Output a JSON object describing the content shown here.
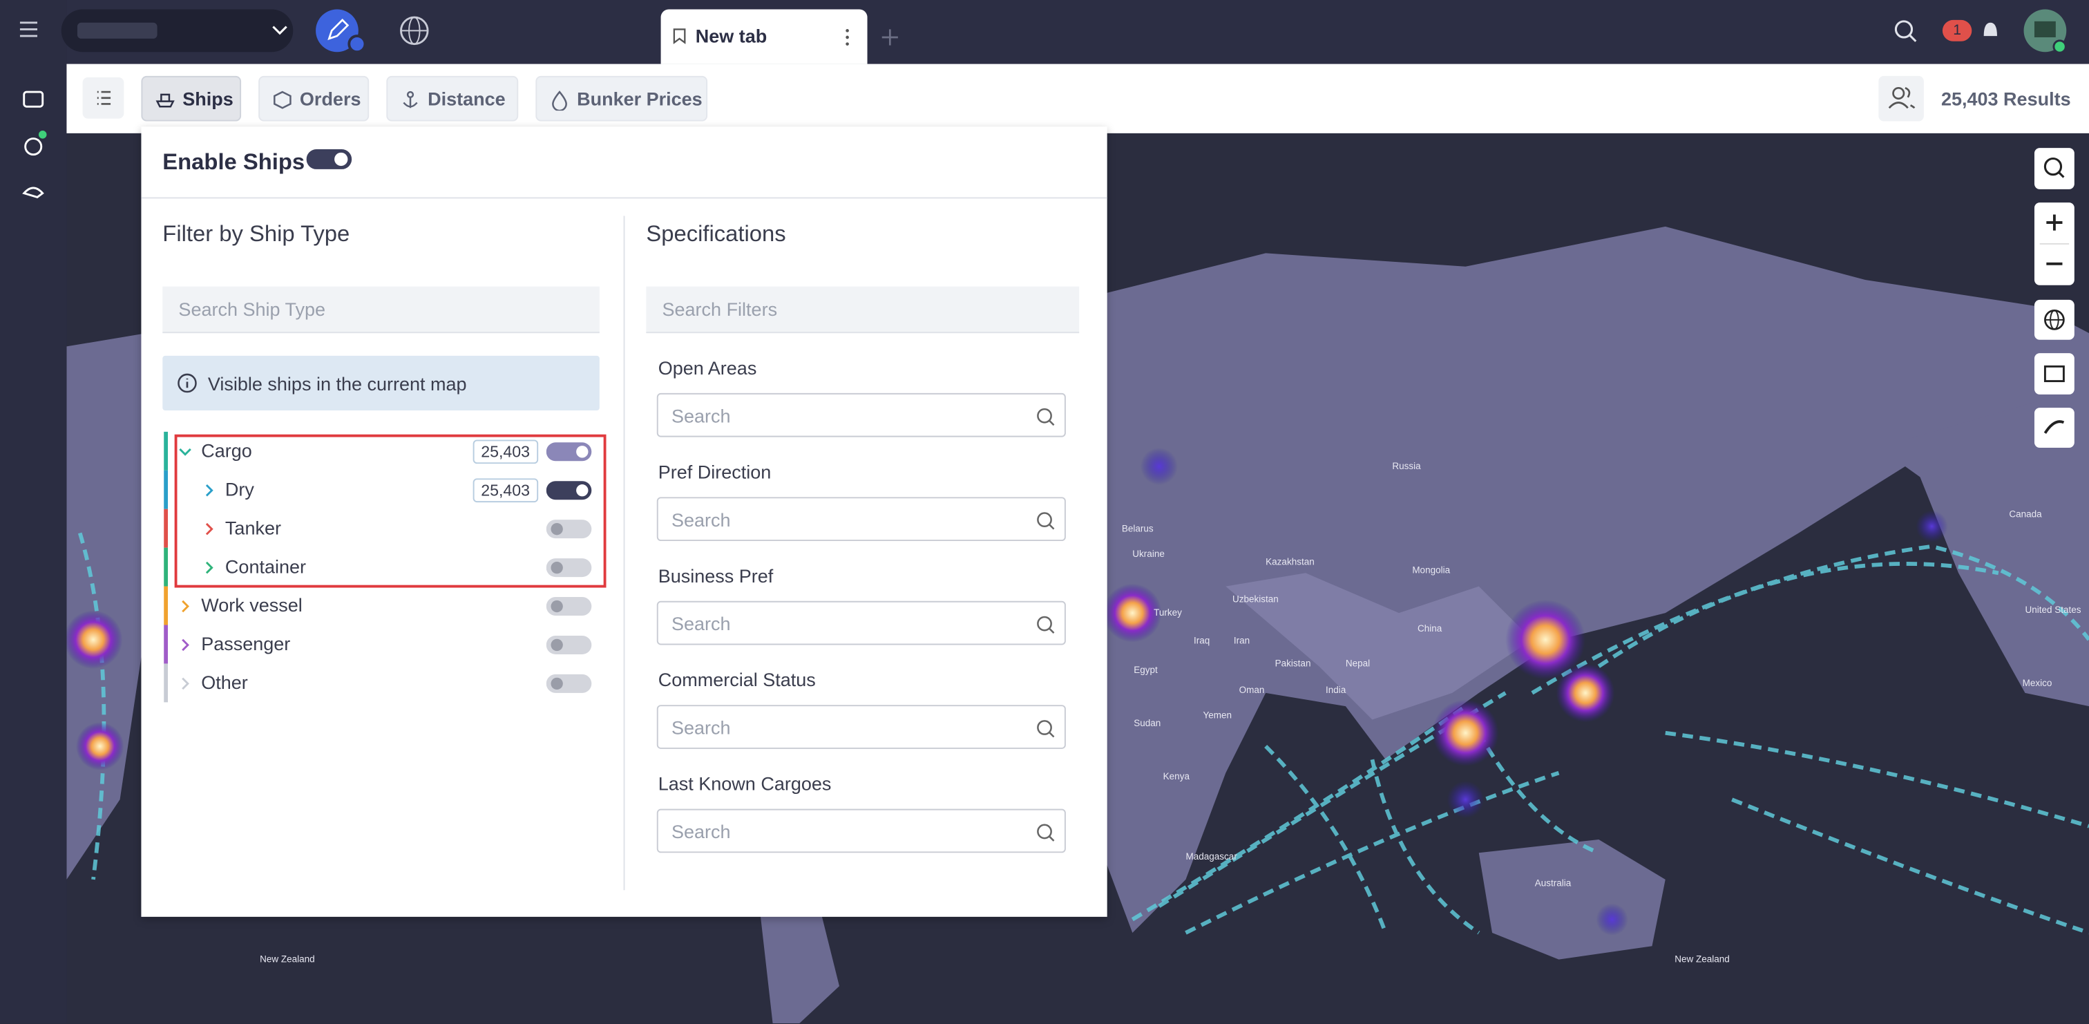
{
  "topbar": {
    "tab_title": "New tab",
    "notification_count": "1"
  },
  "toolbar": {
    "tabs": [
      "Ships",
      "Orders",
      "Distance",
      "Bunker Prices"
    ],
    "results": "25,403 Results"
  },
  "panel": {
    "enable_label": "Enable Ships",
    "filter_title": "Filter by Ship Type",
    "search_ship_type": "Search Ship Type",
    "info": "Visible ships in the current map",
    "ship_types": [
      {
        "label": "Cargo",
        "count": "25,403",
        "enabled": true,
        "level": 0,
        "color": "#2ab39b"
      },
      {
        "label": "Dry",
        "count": "25,403",
        "enabled": true,
        "level": 1,
        "color": "#2a9fc9"
      },
      {
        "label": "Tanker",
        "enabled": false,
        "level": 1,
        "color": "#e0504a"
      },
      {
        "label": "Container",
        "enabled": false,
        "level": 1,
        "color": "#2fb37a"
      },
      {
        "label": "Work vessel",
        "enabled": false,
        "level": 0,
        "color": "#f0a22e"
      },
      {
        "label": "Passenger",
        "enabled": false,
        "level": 0,
        "color": "#a05cc8"
      },
      {
        "label": "Other",
        "enabled": false,
        "level": 0,
        "color": "#c8ccd4"
      }
    ],
    "specs_title": "Specifications",
    "search_filters": "Search Filters",
    "filters": [
      {
        "label": "Open Areas",
        "placeholder": "Search"
      },
      {
        "label": "Pref Direction",
        "placeholder": "Search"
      },
      {
        "label": "Business Pref",
        "placeholder": "Search"
      },
      {
        "label": "Commercial Status",
        "placeholder": "Search"
      },
      {
        "label": "Last Known Cargoes",
        "placeholder": "Search"
      }
    ]
  },
  "map": {
    "labels": [
      "Russia",
      "Kazakhstan",
      "Mongolia",
      "Uzbekistan",
      "China",
      "India",
      "Pakistan",
      "Nepal",
      "Belarus",
      "Ukraine",
      "Turkey",
      "Iraq",
      "Iran",
      "Egypt",
      "Sudan",
      "Yemen",
      "Oman",
      "Kenya",
      "Madagascar",
      "Australia",
      "New Zealand",
      "New Zealand",
      "Canada",
      "United States",
      "Mexico"
    ]
  }
}
